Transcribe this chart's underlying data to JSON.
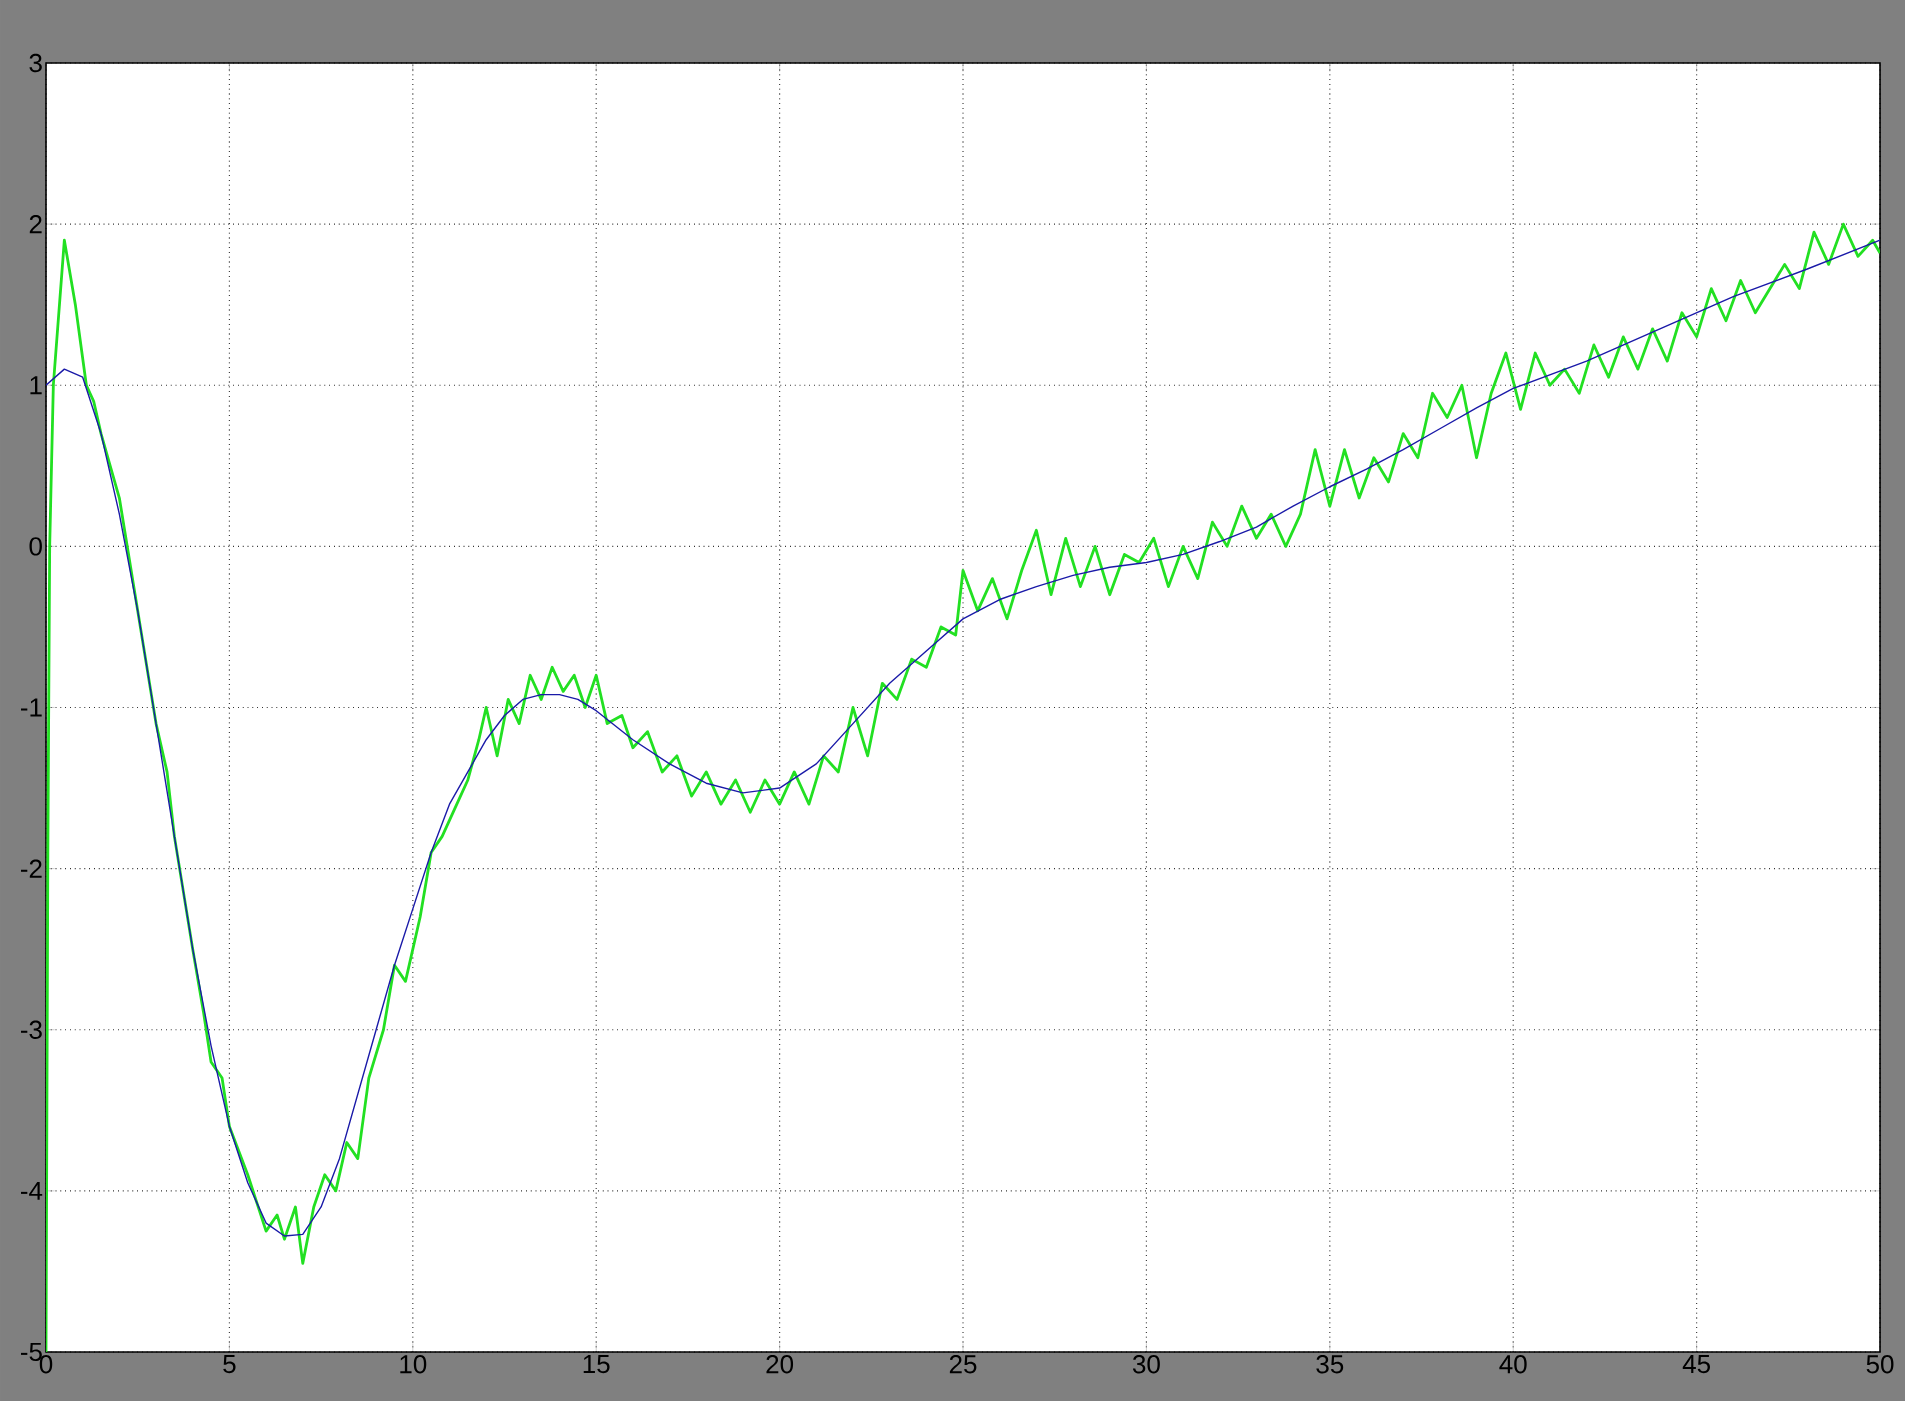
{
  "chart_data": {
    "type": "line",
    "xlim": [
      0,
      50
    ],
    "ylim": [
      -5,
      3
    ],
    "xticks": [
      0,
      5,
      10,
      15,
      20,
      25,
      30,
      35,
      40,
      45,
      50
    ],
    "yticks": [
      -5,
      -4,
      -3,
      -2,
      -1,
      0,
      1,
      2,
      3
    ],
    "grid": true,
    "line_style": "solid",
    "marker": "none",
    "series": [
      {
        "color": "#22e022",
        "x": [
          0,
          0.05,
          0.1,
          0.2,
          0.5,
          0.8,
          1.1,
          1.3,
          1.5,
          2,
          2.5,
          3,
          3.3,
          3.5,
          4,
          4.3,
          4.5,
          4.8,
          5,
          5.5,
          6,
          6.3,
          6.5,
          6.8,
          7,
          7.3,
          7.6,
          7.9,
          8.2,
          8.5,
          8.8,
          9.2,
          9.5,
          9.8,
          10.2,
          10.5,
          10.8,
          11.2,
          11.5,
          11.8,
          12,
          12.3,
          12.6,
          12.9,
          13.2,
          13.5,
          13.8,
          14.1,
          14.4,
          14.7,
          15,
          15.3,
          15.7,
          16,
          16.4,
          16.8,
          17.2,
          17.6,
          18,
          18.4,
          18.8,
          19.2,
          19.6,
          20,
          20.4,
          20.8,
          21.2,
          21.6,
          22,
          22.4,
          22.8,
          23.2,
          23.6,
          24,
          24.4,
          24.8,
          25,
          25.4,
          25.8,
          26.2,
          26.6,
          27,
          27.4,
          27.8,
          28.2,
          28.6,
          29,
          29.4,
          29.8,
          30.2,
          30.6,
          31,
          31.4,
          31.8,
          32.2,
          32.6,
          33,
          33.4,
          33.8,
          34.2,
          34.6,
          35,
          35.4,
          35.8,
          36.2,
          36.6,
          37,
          37.4,
          37.8,
          38.2,
          38.6,
          39,
          39.4,
          39.8,
          40.2,
          40.6,
          41,
          41.4,
          41.8,
          42.2,
          42.6,
          43,
          43.4,
          43.8,
          44.2,
          44.6,
          45,
          45.4,
          45.8,
          46.2,
          46.6,
          47,
          47.4,
          47.8,
          48.2,
          48.6,
          49,
          49.4,
          49.8,
          50
        ],
        "values": [
          -5,
          -1.9,
          0,
          1,
          1.9,
          1.5,
          1,
          0.9,
          0.7,
          0.3,
          -0.4,
          -1.1,
          -1.4,
          -1.8,
          -2.5,
          -2.9,
          -3.2,
          -3.3,
          -3.6,
          -3.9,
          -4.25,
          -4.15,
          -4.3,
          -4.1,
          -4.45,
          -4.1,
          -3.9,
          -4,
          -3.7,
          -3.8,
          -3.3,
          -3,
          -2.6,
          -2.7,
          -2.3,
          -1.9,
          -1.8,
          -1.6,
          -1.45,
          -1.2,
          -1,
          -1.3,
          -0.95,
          -1.1,
          -0.8,
          -0.95,
          -0.75,
          -0.9,
          -0.8,
          -1,
          -0.8,
          -1.1,
          -1.05,
          -1.25,
          -1.15,
          -1.4,
          -1.3,
          -1.55,
          -1.4,
          -1.6,
          -1.45,
          -1.65,
          -1.45,
          -1.6,
          -1.4,
          -1.6,
          -1.3,
          -1.4,
          -1,
          -1.3,
          -0.85,
          -0.95,
          -0.7,
          -0.75,
          -0.5,
          -0.55,
          -0.15,
          -0.4,
          -0.2,
          -0.45,
          -0.15,
          0.1,
          -0.3,
          0.05,
          -0.25,
          0,
          -0.3,
          -0.05,
          -0.1,
          0.05,
          -0.25,
          0,
          -0.2,
          0.15,
          0,
          0.25,
          0.05,
          0.2,
          0,
          0.2,
          0.6,
          0.25,
          0.6,
          0.3,
          0.55,
          0.4,
          0.7,
          0.55,
          0.95,
          0.8,
          1,
          0.55,
          0.95,
          1.2,
          0.85,
          1.2,
          1,
          1.1,
          0.95,
          1.25,
          1.05,
          1.3,
          1.1,
          1.35,
          1.15,
          1.45,
          1.3,
          1.6,
          1.4,
          1.65,
          1.45,
          1.6,
          1.75,
          1.6,
          1.95,
          1.75,
          2,
          1.8,
          1.9,
          1.82
        ]
      },
      {
        "color": "#1a1aa8",
        "x": [
          0,
          0.5,
          1,
          1.5,
          2,
          2.5,
          3,
          3.5,
          4,
          4.5,
          5,
          5.5,
          6,
          6.5,
          7,
          7.5,
          8,
          8.5,
          9,
          9.5,
          10,
          10.5,
          11,
          11.5,
          12,
          12.5,
          13,
          13.5,
          14,
          14.5,
          15,
          16,
          17,
          18,
          19,
          20,
          21,
          22,
          23,
          24,
          25,
          26,
          27,
          28,
          29,
          30,
          31,
          32,
          33,
          34,
          35,
          36,
          37,
          38,
          39,
          40,
          42,
          44,
          46,
          48,
          50
        ],
        "values": [
          1,
          1.1,
          1.05,
          0.7,
          0.2,
          -0.4,
          -1.1,
          -1.8,
          -2.5,
          -3.1,
          -3.6,
          -3.95,
          -4.2,
          -4.28,
          -4.27,
          -4.1,
          -3.8,
          -3.4,
          -3,
          -2.6,
          -2.25,
          -1.9,
          -1.6,
          -1.4,
          -1.2,
          -1.05,
          -0.95,
          -0.92,
          -0.92,
          -0.95,
          -1.02,
          -1.2,
          -1.35,
          -1.47,
          -1.53,
          -1.5,
          -1.35,
          -1.1,
          -0.85,
          -0.65,
          -0.45,
          -0.33,
          -0.25,
          -0.18,
          -0.13,
          -0.1,
          -0.05,
          0.03,
          0.12,
          0.25,
          0.37,
          0.48,
          0.6,
          0.73,
          0.86,
          0.98,
          1.15,
          1.35,
          1.55,
          1.72,
          1.9
        ]
      }
    ]
  }
}
